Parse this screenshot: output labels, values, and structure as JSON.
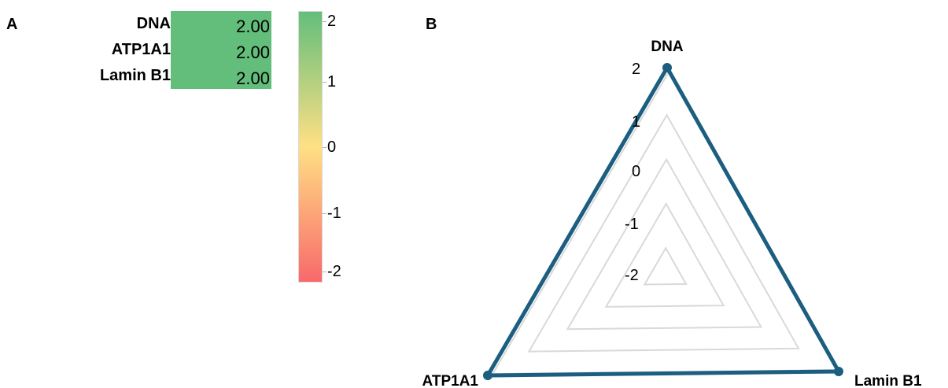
{
  "panels": {
    "a_label": "A",
    "b_label": "B"
  },
  "colors": {
    "high": "#63be7b",
    "mid": "#ffe084",
    "low": "#f8696b",
    "series": "#1b5e80",
    "grid": "#d9d9d9"
  },
  "chart_data": [
    {
      "type": "heatmap",
      "rows": [
        "DNA",
        "ATP1A1",
        "Lamin B1"
      ],
      "values": [
        2.0,
        2.0,
        2.0
      ],
      "value_labels": [
        "2.00",
        "2.00",
        "2.00"
      ],
      "colorscale": {
        "min": -2,
        "mid": 0,
        "max": 2,
        "low_color": "#f8696b",
        "mid_color": "#ffe084",
        "high_color": "#63be7b"
      },
      "colorbar_ticks": [
        "2",
        "1",
        "0",
        "-1",
        "-2"
      ]
    },
    {
      "type": "radar",
      "axes": [
        "DNA",
        "ATP1A1",
        "Lamin B1"
      ],
      "values": [
        2,
        2,
        2
      ],
      "range": [
        -2,
        2
      ],
      "ring_labels": [
        "2",
        "1",
        "0",
        "-1",
        "-2"
      ],
      "grid": true
    }
  ]
}
